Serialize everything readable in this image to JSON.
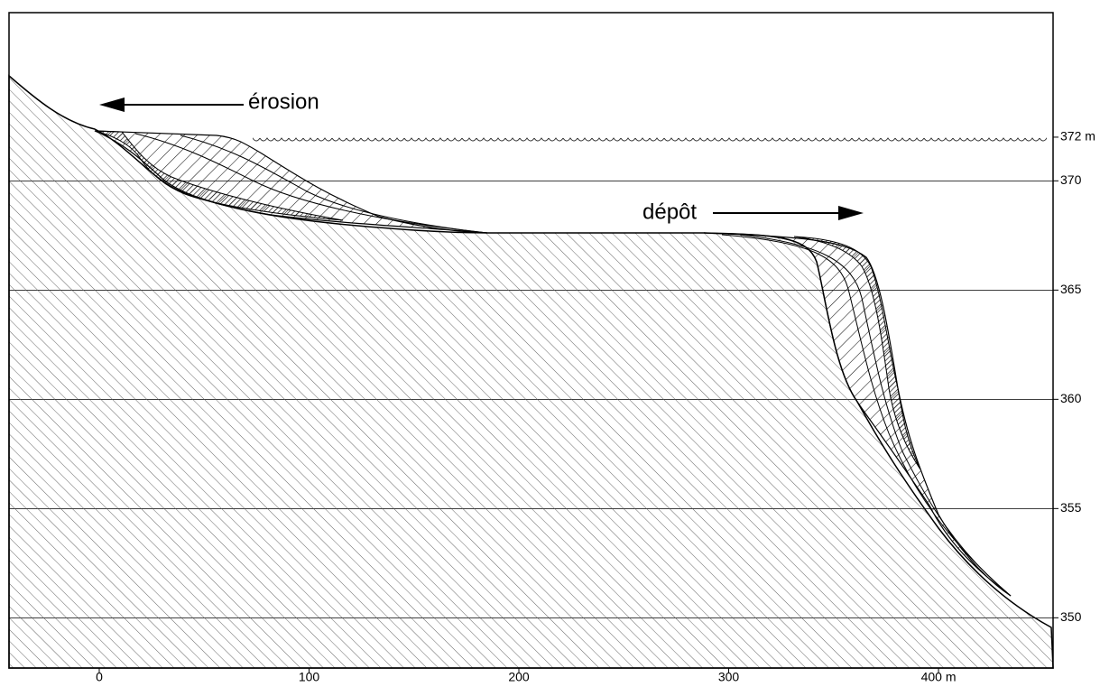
{
  "annotations": {
    "erosion": "érosion",
    "deposit": "dépôt"
  },
  "axes": {
    "xlim": [
      -43,
      454.6
    ],
    "ylim": [
      347.7,
      377.7
    ],
    "xticks": [
      0,
      100,
      200,
      300,
      {
        "value": 400,
        "label": "400 m"
      }
    ],
    "yticks": [
      {
        "value": 372,
        "label": "372 m"
      },
      370,
      365,
      360,
      355,
      350
    ]
  }
}
